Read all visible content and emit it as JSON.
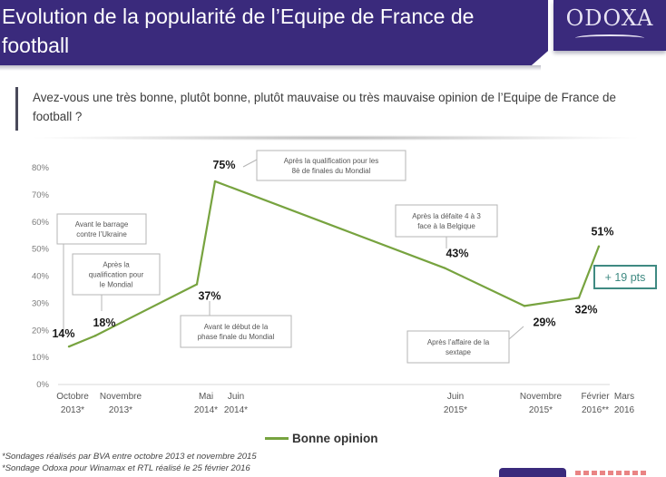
{
  "header": {
    "title": "Evolution de la popularité de l’Equipe de France de football",
    "logo": "ODOXA"
  },
  "question": "Avez-vous une très bonne, plutôt bonne, plutôt mauvaise ou très mauvaise opinion de l’Equipe de France de football ?",
  "colors": {
    "brand": "#3a2a7c",
    "series": "#77a33f",
    "badge": "#3f8a82"
  },
  "chart_data": {
    "type": "line",
    "title": "",
    "xlabel": "",
    "ylabel": "",
    "ylim": [
      0,
      80
    ],
    "yticks": [
      "0%",
      "10%",
      "20%",
      "30%",
      "40%",
      "50%",
      "60%",
      "70%",
      "80%"
    ],
    "categories": [
      {
        "line1": "Octobre",
        "line2": "2013*"
      },
      {
        "line1": "Novembre",
        "line2": "2013*"
      },
      {
        "line1": "Mai",
        "line2": "2014*"
      },
      {
        "line1": "Juin",
        "line2": "2014*"
      },
      {
        "line1": "Juin",
        "line2": "2015*"
      },
      {
        "line1": "Novembre",
        "line2": "2015*"
      },
      {
        "line1": "Février",
        "line2": "2016**"
      },
      {
        "line1": "Mars",
        "line2": "2016"
      }
    ],
    "series": [
      {
        "name": "Bonne opinion",
        "values": [
          14,
          18,
          37,
          75,
          43,
          29,
          32,
          51
        ],
        "labels": [
          "14%",
          "18%",
          "37%",
          "75%",
          "43%",
          "29%",
          "32%",
          "51%"
        ]
      }
    ],
    "annotations": [
      {
        "point": 0,
        "line1": "Avant le barrage",
        "line2": "contre l’Ukraine",
        "line3": ""
      },
      {
        "point": 1,
        "line1": "Après la",
        "line2": "qualification pour",
        "line3": "le Mondial"
      },
      {
        "point": 2,
        "line1": "Avant le début de la",
        "line2": "phase finale du Mondial",
        "line3": ""
      },
      {
        "point": 3,
        "line1": "Après la qualification pour les",
        "line2": "8è de finales du Mondial",
        "line3": ""
      },
      {
        "point": 4,
        "line1": "Après la défaite 4 à 3",
        "line2": "face à la Belgique",
        "line3": ""
      },
      {
        "point": 5,
        "line1": "Après l’affaire de la",
        "line2": "sextape",
        "line3": ""
      }
    ],
    "badge": "+ 19 pts",
    "legend": "Bonne opinion",
    "legend_position": "bottom",
    "grid": false
  },
  "footnotes": [
    "*Sondages réalisés par BVA entre octobre 2013 et novembre 2015",
    "*Sondage Odoxa  pour Winamax et RTL réalisé le 25 février 2016"
  ]
}
